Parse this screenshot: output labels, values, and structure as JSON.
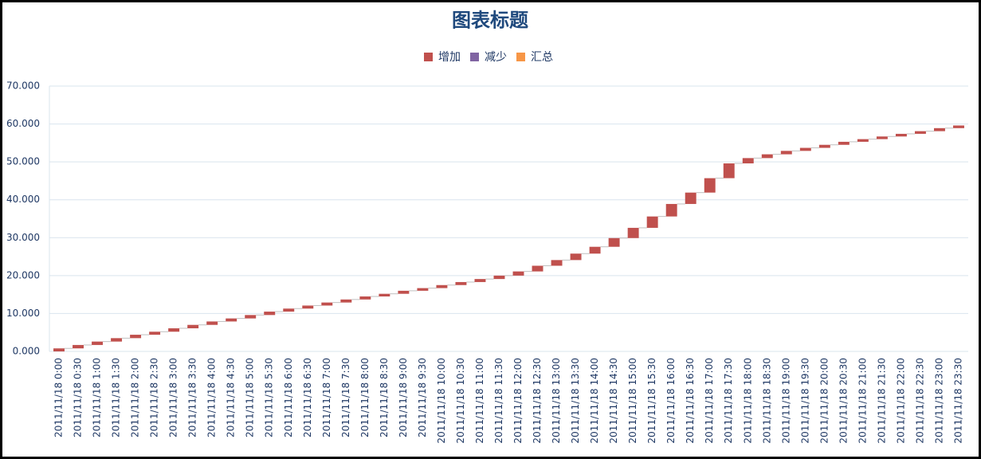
{
  "chart_data": {
    "type": "waterfall",
    "title": "图表标题",
    "categories": [
      "2011/11/18 0:00",
      "2011/11/18 0:30",
      "2011/11/18 1:00",
      "2011/11/18 1:30",
      "2011/11/18 2:00",
      "2011/11/18 2:30",
      "2011/11/18 3:00",
      "2011/11/18 3:30",
      "2011/11/18 4:00",
      "2011/11/18 4:30",
      "2011/11/18 5:00",
      "2011/11/18 5:30",
      "2011/11/18 6:00",
      "2011/11/18 6:30",
      "2011/11/18 7:00",
      "2011/11/18 7:30",
      "2011/11/18 8:00",
      "2011/11/18 8:30",
      "2011/11/18 9:00",
      "2011/11/18 9:30",
      "2011/11/18 10:00",
      "2011/11/18 10:30",
      "2011/11/18 11:00",
      "2011/11/18 11:30",
      "2011/11/18 12:00",
      "2011/11/18 12:30",
      "2011/11/18 13:00",
      "2011/11/18 13:30",
      "2011/11/18 14:00",
      "2011/11/18 14:30",
      "2011/11/18 15:00",
      "2011/11/18 15:30",
      "2011/11/18 16:00",
      "2011/11/18 16:30",
      "2011/11/18 17:00",
      "2011/11/18 17:30",
      "2011/11/18 18:00",
      "2011/11/18 18:30",
      "2011/11/18 19:00",
      "2011/11/18 19:30",
      "2011/11/18 20:00",
      "2011/11/18 20:30",
      "2011/11/18 21:00",
      "2011/11/18 21:30",
      "2011/11/18 22:00",
      "2011/11/18 22:30",
      "2011/11/18 23:00",
      "2011/11/18 23:30"
    ],
    "series": [
      {
        "name": "增加",
        "color": "#c0504d",
        "values": [
          0.8,
          0.9,
          0.9,
          0.9,
          0.9,
          0.8,
          0.9,
          0.9,
          0.9,
          0.8,
          0.9,
          0.9,
          0.8,
          0.8,
          0.8,
          0.8,
          0.8,
          0.7,
          0.8,
          0.7,
          0.8,
          0.8,
          0.8,
          0.9,
          1.1,
          1.5,
          1.5,
          1.7,
          1.8,
          2.3,
          2.7,
          3.0,
          3.3,
          3.0,
          3.8,
          3.9,
          1.4,
          1.0,
          0.9,
          0.8,
          0.8,
          0.8,
          0.7,
          0.7,
          0.7,
          0.7,
          0.8,
          0.7
        ]
      },
      {
        "name": "减少",
        "color": "#8064a2",
        "values": [
          null,
          null,
          null,
          null,
          null,
          null,
          null,
          null,
          null,
          null,
          null,
          null,
          null,
          null,
          null,
          null,
          null,
          null,
          null,
          null,
          null,
          null,
          null,
          null,
          null,
          null,
          null,
          null,
          null,
          null,
          null,
          null,
          null,
          null,
          null,
          null,
          null,
          null,
          null,
          null,
          null,
          null,
          null,
          null,
          null,
          null,
          null,
          null
        ]
      },
      {
        "name": "汇总",
        "color": "#f79646",
        "values": [
          null,
          null,
          null,
          null,
          null,
          null,
          null,
          null,
          null,
          null,
          null,
          null,
          null,
          null,
          null,
          null,
          null,
          null,
          null,
          null,
          null,
          null,
          null,
          null,
          null,
          null,
          null,
          null,
          null,
          null,
          null,
          null,
          null,
          null,
          null,
          null,
          null,
          null,
          null,
          null,
          null,
          null,
          null,
          null,
          null,
          null,
          null,
          null
        ]
      }
    ],
    "ylim": [
      0,
      70
    ],
    "yticks": [
      {
        "value": 0,
        "label": "0.000"
      },
      {
        "value": 10,
        "label": "10.000"
      },
      {
        "value": 20,
        "label": "20.000"
      },
      {
        "value": 30,
        "label": "30.000"
      },
      {
        "value": 40,
        "label": "40.000"
      },
      {
        "value": 50,
        "label": "50.000"
      },
      {
        "value": 60,
        "label": "60.000"
      },
      {
        "value": 70,
        "label": "70.000"
      }
    ],
    "grid": true,
    "legend": "top"
  }
}
